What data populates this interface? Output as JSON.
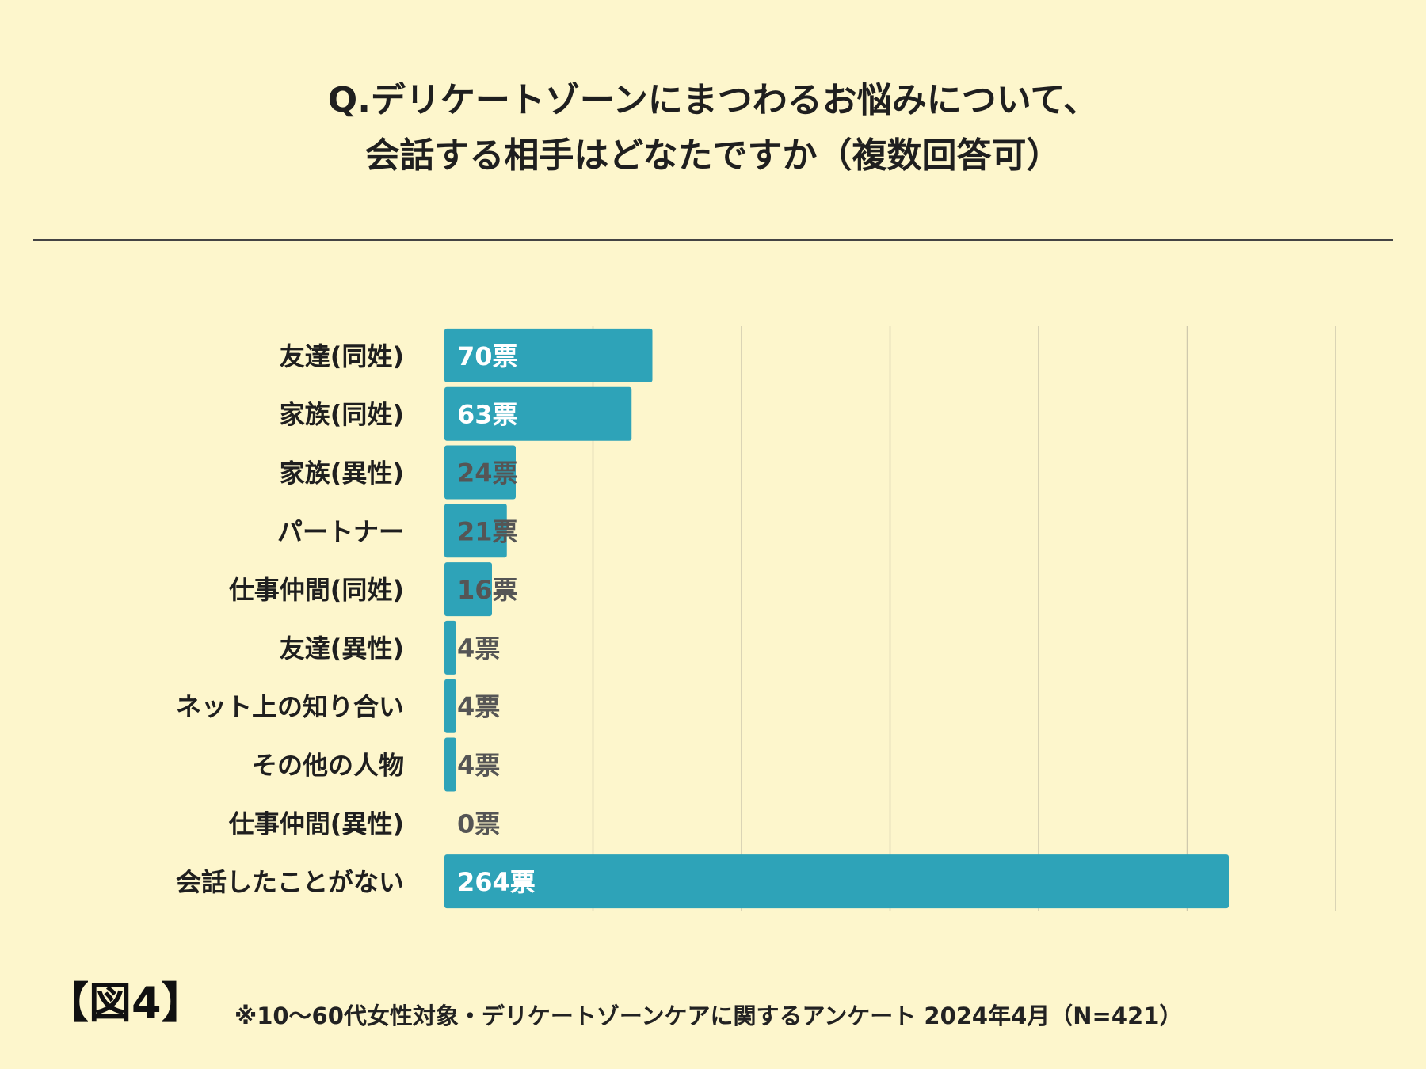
{
  "header": {
    "title_line1": "Q.デリケートゾーンにまつわるお悩みについて、",
    "title_line2": "会話する相手はどなたですか（複数回答可）"
  },
  "figure_label": "【図4】",
  "footnote": "※10〜60代女性対象・デリケートゾーンケアに関するアンケート 2024年4月（N=421）",
  "colors": {
    "bar": "#2ea3b8",
    "background": "#fdf6cc",
    "grid": "#cfc9ad",
    "label_inside": "#ffffff",
    "label_outside": "#555555"
  },
  "chart_data": {
    "type": "bar",
    "orientation": "horizontal",
    "title": "Q.デリケートゾーンにまつわるお悩みについて、会話する相手はどなたですか（複数回答可）",
    "categories": [
      "友達(同姓)",
      "家族(同姓)",
      "家族(異性)",
      "パートナー",
      "仕事仲間(同姓)",
      "友達(異性)",
      "ネット上の知り合い",
      "その他の人物",
      "仕事仲間(異性)",
      "会話したことがない"
    ],
    "values": [
      70,
      63,
      24,
      21,
      16,
      4,
      4,
      4,
      0,
      264
    ],
    "value_labels": [
      "70票",
      "63票",
      "24票",
      "21票",
      "16票",
      "4票",
      "4票",
      "4票",
      "0票",
      "264票"
    ],
    "xlim": [
      0,
      300
    ],
    "grid_step": 50,
    "grid": true,
    "legend": "none"
  }
}
